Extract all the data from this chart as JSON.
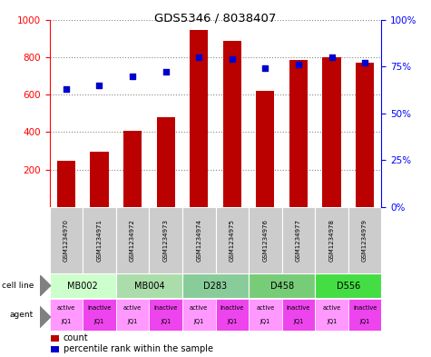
{
  "title": "GDS5346 / 8038407",
  "gsm_labels": [
    "GSM1234970",
    "GSM1234971",
    "GSM1234972",
    "GSM1234973",
    "GSM1234974",
    "GSM1234975",
    "GSM1234976",
    "GSM1234977",
    "GSM1234978",
    "GSM1234979"
  ],
  "counts": [
    248,
    295,
    408,
    480,
    945,
    885,
    618,
    785,
    800,
    772
  ],
  "percentiles": [
    63,
    65,
    70,
    72,
    80,
    79,
    74,
    76,
    80,
    77
  ],
  "cell_lines": [
    {
      "label": "MB002",
      "cols": [
        0,
        1
      ],
      "color": "#ccffcc"
    },
    {
      "label": "MB004",
      "cols": [
        2,
        3
      ],
      "color": "#aaddaa"
    },
    {
      "label": "D283",
      "cols": [
        4,
        5
      ],
      "color": "#88cc99"
    },
    {
      "label": "D458",
      "cols": [
        6,
        7
      ],
      "color": "#77cc77"
    },
    {
      "label": "D556",
      "cols": [
        8,
        9
      ],
      "color": "#44dd44"
    }
  ],
  "agents": [
    "active",
    "inactive",
    "active",
    "inactive",
    "active",
    "inactive",
    "active",
    "inactive",
    "active",
    "inactive"
  ],
  "agent_active_color": "#ff99ff",
  "agent_inactive_color": "#ee44ee",
  "bar_color": "#bb0000",
  "dot_color": "#0000cc",
  "ylim_left": [
    0,
    1000
  ],
  "ylim_right": [
    0,
    100
  ],
  "yticks_left": [
    200,
    400,
    600,
    800,
    1000
  ],
  "yticks_right": [
    0,
    25,
    50,
    75,
    100
  ],
  "grid_vals": [
    200,
    400,
    600,
    800
  ],
  "grid_color": "#888888",
  "background_color": "#ffffff",
  "gsm_box_color": "#cccccc"
}
